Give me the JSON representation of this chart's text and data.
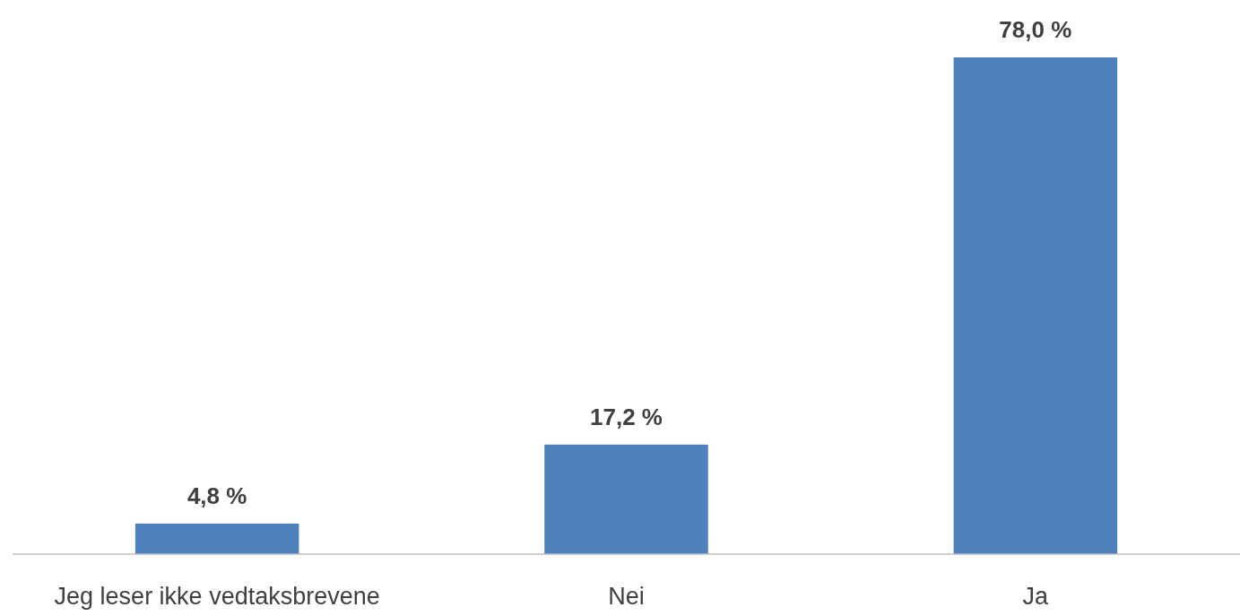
{
  "chart_data": {
    "type": "bar",
    "categories": [
      "Jeg leser ikke vedtaksbrevene",
      "Nei",
      "Ja"
    ],
    "values": [
      4.8,
      17.2,
      78.0
    ],
    "value_labels": [
      "4,8 %",
      "17,2 %",
      "78,0 %"
    ],
    "color": "#4f81bd"
  }
}
